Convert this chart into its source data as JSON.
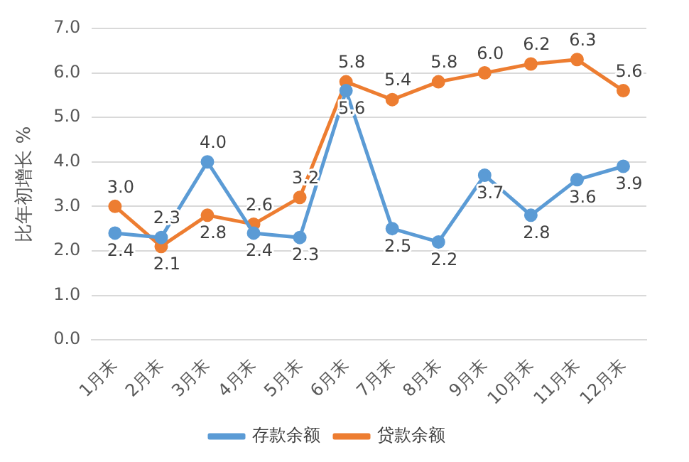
{
  "chart_data": {
    "type": "line",
    "ylabel": "比年初增长 %",
    "categories": [
      "1月末",
      "2月末",
      "3月末",
      "4月末",
      "5月末",
      "6月末",
      "7月末",
      "8月末",
      "9月末",
      "10月末",
      "11月末",
      "12月末"
    ],
    "series": [
      {
        "name": "存款余额",
        "color": "#5b9bd5",
        "values": [
          2.4,
          2.3,
          4.0,
          2.4,
          2.3,
          5.6,
          2.5,
          2.2,
          3.7,
          2.8,
          3.6,
          3.9
        ],
        "value_labels": [
          "2.4",
          "2.3",
          "4.0",
          "2.4",
          "2.3",
          "5.6",
          "2.5",
          "2.2",
          "3.7",
          "2.8",
          "3.6",
          "3.9"
        ]
      },
      {
        "name": "贷款余额",
        "color": "#ed7d31",
        "values": [
          3.0,
          2.1,
          2.8,
          2.6,
          3.2,
          5.8,
          5.4,
          5.8,
          6.0,
          6.2,
          6.3,
          5.6
        ],
        "value_labels": [
          "3.0",
          "2.1",
          "2.8",
          "2.6",
          "3.2",
          "5.8",
          "5.4",
          "5.8",
          "6.0",
          "6.2",
          "6.3",
          "5.6"
        ]
      }
    ],
    "ylim": [
      0,
      7
    ],
    "yticks": [
      {
        "value": 0,
        "label": "0.0"
      },
      {
        "value": 1,
        "label": "1.0"
      },
      {
        "value": 2,
        "label": "2.0"
      },
      {
        "value": 3,
        "label": "3.0"
      },
      {
        "value": 4,
        "label": "4.0"
      },
      {
        "value": 5,
        "label": "5.0"
      },
      {
        "value": 6,
        "label": "6.0"
      },
      {
        "value": 7,
        "label": "7.0"
      }
    ],
    "grid": "y",
    "legend": "bottom",
    "marker": "circle",
    "line_style": "solid"
  }
}
